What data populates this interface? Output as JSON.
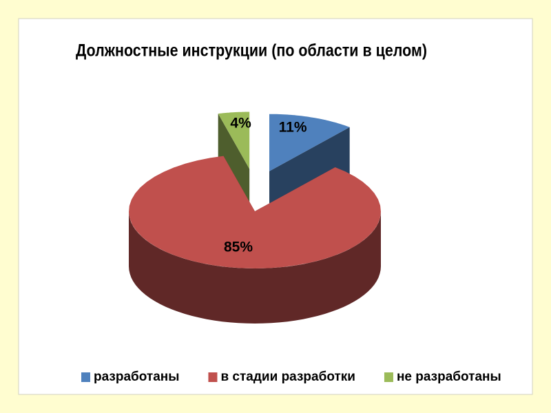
{
  "chart_data": {
    "type": "pie3d",
    "title": "Должностные инструкции (по области в целом)",
    "categories": [
      "разработаны",
      "в стадии разработки",
      "не разработаны"
    ],
    "values": [
      11,
      85,
      4
    ],
    "value_labels": [
      "11%",
      "85%",
      "4%"
    ],
    "colors": [
      "#4f81bd",
      "#c0504d",
      "#9bbb59"
    ],
    "legend": "bottom"
  }
}
